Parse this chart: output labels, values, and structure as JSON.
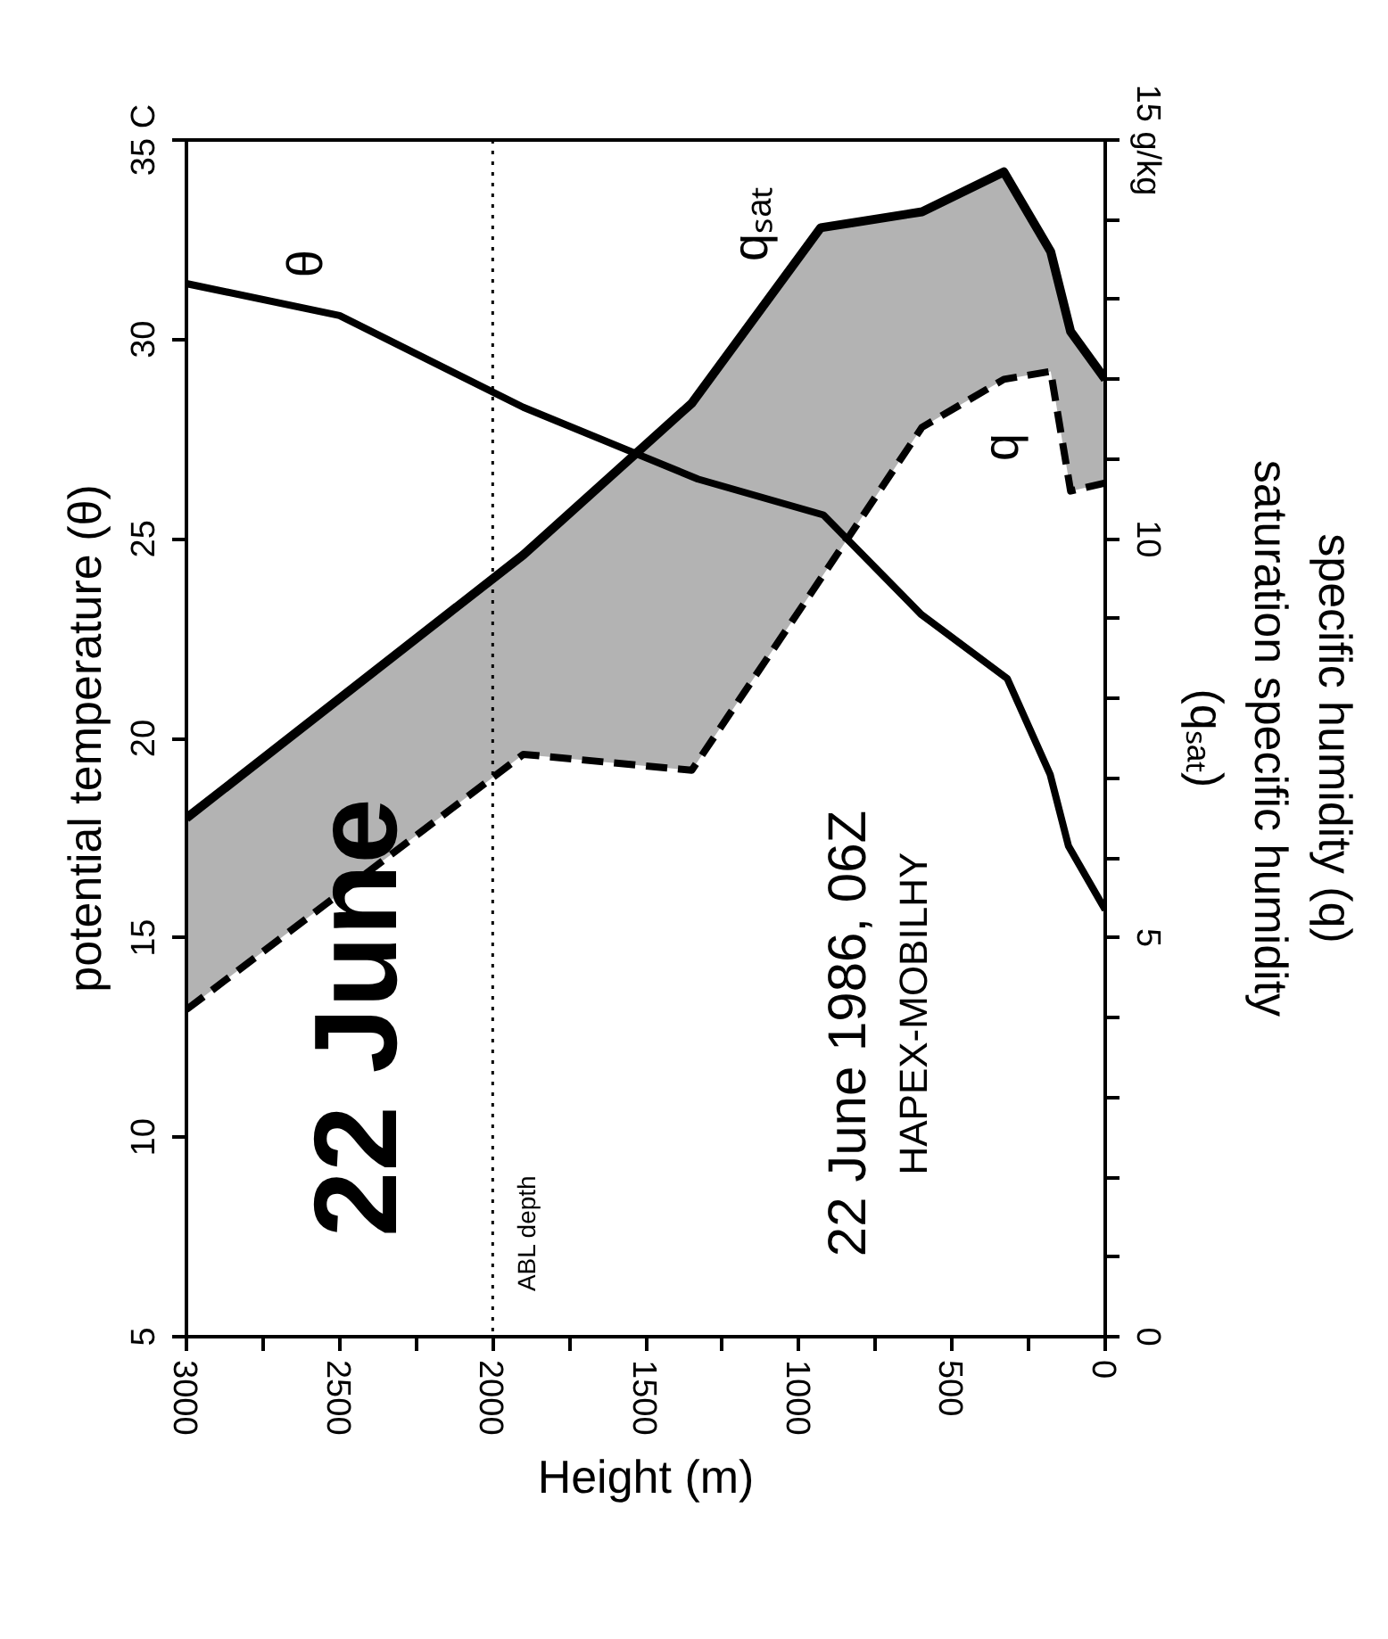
{
  "chart_data": {
    "type": "line",
    "title": null,
    "xlabel": "Height (m)",
    "ylabel": "potential temperature (θ)",
    "y2label": "specific humidity (q)\nsaturation specific humidity\n(qₛₐₜ)",
    "xlim": [
      3000,
      0
    ],
    "xticks": [
      0,
      {
        "value": 250,
        "label": null
      },
      500,
      {
        "value": 750,
        "label": null
      },
      1000,
      {
        "value": 1250,
        "label": null
      },
      1500,
      {
        "value": 1750,
        "label": null
      },
      2000,
      {
        "value": 2250,
        "label": null
      },
      2500,
      {
        "value": 2750,
        "label": null
      },
      3000
    ],
    "ylim": [
      5,
      35
    ],
    "yticks": [
      5,
      10,
      15,
      20,
      25,
      30,
      {
        "value": 35,
        "label": "35 C"
      }
    ],
    "y2lim": [
      0,
      15
    ],
    "y2ticks": [
      0,
      {
        "value": 1,
        "label": null
      },
      {
        "value": 2,
        "label": null
      },
      {
        "value": 3,
        "label": null
      },
      {
        "value": 4,
        "label": null
      },
      5,
      {
        "value": 6,
        "label": null
      },
      {
        "value": 7,
        "label": null
      },
      {
        "value": 8,
        "label": null
      },
      {
        "value": 9,
        "label": null
      },
      10,
      {
        "value": 11,
        "label": null
      },
      {
        "value": 12,
        "label": null
      },
      {
        "value": 13,
        "label": null
      },
      {
        "value": 14,
        "label": null
      },
      {
        "value": 15,
        "label": "15 g/kg"
      }
    ],
    "grid": false,
    "marker": "none",
    "series": [
      {
        "name": "θ",
        "color": "#000000",
        "x": [
          3000,
          2500,
          1900,
          1330,
          920,
          600,
          320,
          180,
          120,
          0
        ],
        "values": [
          31.4,
          30.6,
          28.3,
          26.5,
          25.6,
          23.1,
          21.5,
          19.1,
          17.3,
          15.7
        ]
      },
      {
        "name": "qₛₐₜ",
        "color": "#000000",
        "axis": "y2",
        "x": [
          3000,
          1900,
          1350,
          929,
          598,
          331,
          178,
          113,
          0
        ],
        "values": [
          6.5,
          9.8,
          11.7,
          13.9,
          14.1,
          14.6,
          13.6,
          12.6,
          12.0
        ],
        "lower": [
          4.1,
          7.3,
          7.1,
          9.5,
          11.4,
          12.0,
          12.1,
          10.6,
          10.7
        ],
        "upper": [
          6.5,
          9.8,
          11.7,
          13.9,
          14.1,
          14.6,
          13.6,
          12.6,
          12.0
        ]
      },
      {
        "name": "q",
        "color": "#000000",
        "axis": "y2",
        "line_style": "dashed",
        "x": [
          3000,
          1900,
          1350,
          929,
          598,
          331,
          178,
          113,
          0
        ],
        "values": [
          4.1,
          7.3,
          7.1,
          9.5,
          11.4,
          12.0,
          12.1,
          10.6,
          10.7
        ]
      }
    ],
    "ref_lines": [
      {
        "axis": "x",
        "value": 2000,
        "label": "ABL depth",
        "line_style": "dotted",
        "color": "#000000"
      }
    ],
    "annotations": [
      "22 June",
      "22 June 1986, 06Z",
      "HAPEX-MOBILHY"
    ]
  }
}
